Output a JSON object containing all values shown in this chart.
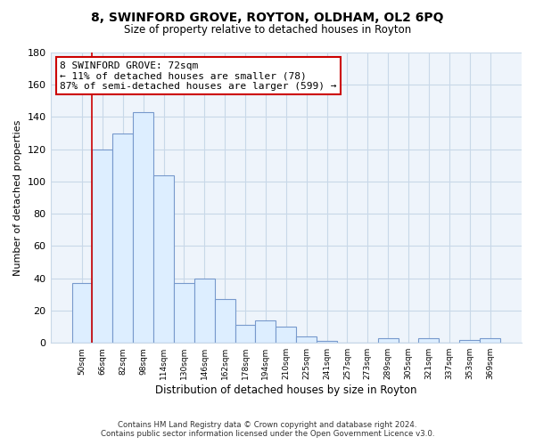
{
  "title": "8, SWINFORD GROVE, ROYTON, OLDHAM, OL2 6PQ",
  "subtitle": "Size of property relative to detached houses in Royton",
  "xlabel": "Distribution of detached houses by size in Royton",
  "ylabel": "Number of detached properties",
  "bar_labels": [
    "50sqm",
    "66sqm",
    "82sqm",
    "98sqm",
    "114sqm",
    "130sqm",
    "146sqm",
    "162sqm",
    "178sqm",
    "194sqm",
    "210sqm",
    "225sqm",
    "241sqm",
    "257sqm",
    "273sqm",
    "289sqm",
    "305sqm",
    "321sqm",
    "337sqm",
    "353sqm",
    "369sqm"
  ],
  "bar_values": [
    37,
    120,
    130,
    143,
    104,
    37,
    40,
    27,
    11,
    14,
    10,
    4,
    1,
    0,
    0,
    3,
    0,
    3,
    0,
    2,
    3
  ],
  "bar_color": "#ddeeff",
  "bar_edge_color": "#7799cc",
  "vline_x": 1,
  "vline_color": "#cc0000",
  "annotation_box_text": "8 SWINFORD GROVE: 72sqm\n← 11% of detached houses are smaller (78)\n87% of semi-detached houses are larger (599) →",
  "box_edge_color": "#cc0000",
  "ylim": [
    0,
    180
  ],
  "yticks": [
    0,
    20,
    40,
    60,
    80,
    100,
    120,
    140,
    160,
    180
  ],
  "footnote1": "Contains HM Land Registry data © Crown copyright and database right 2024.",
  "footnote2": "Contains public sector information licensed under the Open Government Licence v3.0.",
  "background_color": "#ffffff",
  "grid_color": "#c8d8e8"
}
